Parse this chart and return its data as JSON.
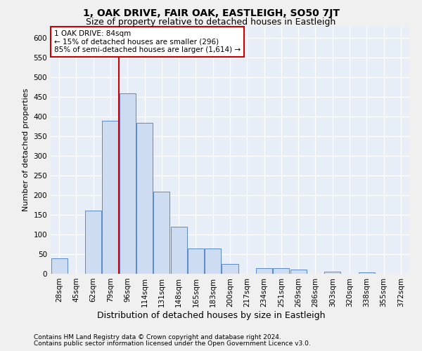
{
  "title": "1, OAK DRIVE, FAIR OAK, EASTLEIGH, SO50 7JT",
  "subtitle": "Size of property relative to detached houses in Eastleigh",
  "xlabel": "Distribution of detached houses by size in Eastleigh",
  "ylabel": "Number of detached properties",
  "footnote1": "Contains HM Land Registry data © Crown copyright and database right 2024.",
  "footnote2": "Contains public sector information licensed under the Open Government Licence v3.0.",
  "bin_labels": [
    "28sqm",
    "45sqm",
    "62sqm",
    "79sqm",
    "96sqm",
    "114sqm",
    "131sqm",
    "148sqm",
    "165sqm",
    "183sqm",
    "200sqm",
    "217sqm",
    "234sqm",
    "251sqm",
    "269sqm",
    "286sqm",
    "303sqm",
    "320sqm",
    "338sqm",
    "355sqm",
    "372sqm"
  ],
  "bar_values": [
    40,
    0,
    160,
    390,
    460,
    385,
    210,
    120,
    65,
    65,
    25,
    0,
    15,
    15,
    10,
    0,
    5,
    0,
    3,
    0,
    0
  ],
  "bar_color": "#cddcf0",
  "bar_edge_color": "#5b8ac7",
  "background_color": "#e8eef8",
  "grid_color": "#ffffff",
  "annotation_label": "1 OAK DRIVE: 84sqm",
  "annotation_line1": "← 15% of detached houses are smaller (296)",
  "annotation_line2": "85% of semi-detached houses are larger (1,614) →",
  "annotation_box_facecolor": "#ffffff",
  "annotation_box_edgecolor": "#cc0000",
  "vline_color": "#cc0000",
  "vline_bin_index": 4,
  "ylim": [
    0,
    630
  ],
  "yticks": [
    0,
    50,
    100,
    150,
    200,
    250,
    300,
    350,
    400,
    450,
    500,
    550,
    600
  ],
  "title_fontsize": 10,
  "subtitle_fontsize": 9,
  "ylabel_fontsize": 8,
  "xlabel_fontsize": 9,
  "tick_fontsize": 7.5,
  "footnote_fontsize": 6.5
}
